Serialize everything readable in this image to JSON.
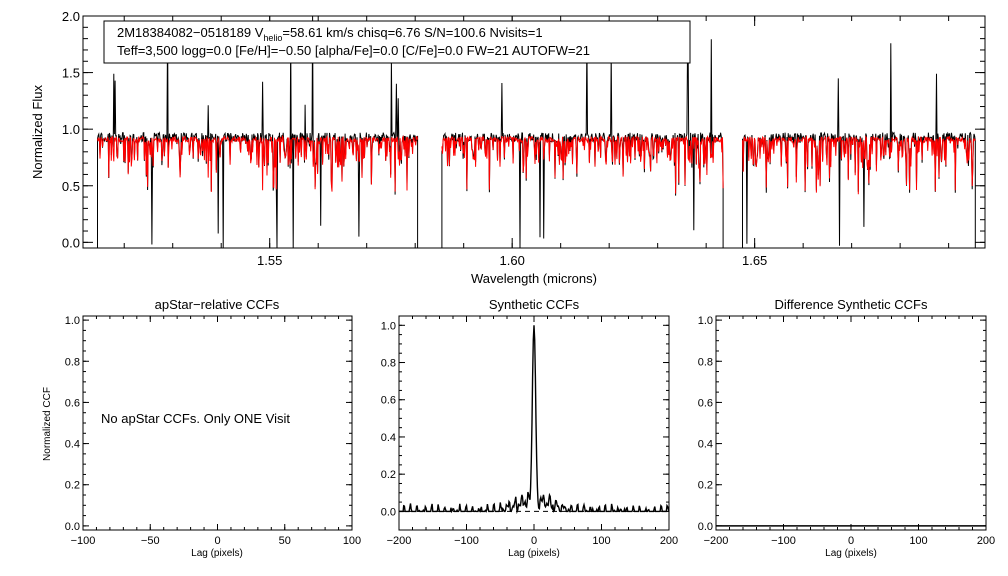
{
  "chart_data": [
    {
      "type": "line",
      "panel": "spectrum",
      "xlabel": "Wavelength (microns)",
      "ylabel": "Normalized Flux",
      "xlim": [
        1.5115,
        1.6975
      ],
      "ylim": [
        -0.05,
        2.0
      ],
      "xticks": [
        1.55,
        1.6,
        1.65
      ],
      "xtick_labels": [
        "1.55",
        "1.60",
        "1.65"
      ],
      "yticks": [
        0.0,
        0.5,
        1.0,
        1.5,
        2.0
      ],
      "ytick_labels": [
        "0.0",
        "0.5",
        "1.0",
        "1.5",
        "2.0"
      ],
      "chips": [
        [
          1.5145,
          1.5805
        ],
        [
          1.5855,
          1.6435
        ],
        [
          1.6475,
          1.6955
        ]
      ],
      "series": [
        {
          "name": "observed",
          "color": "#000000",
          "base": 0.93
        },
        {
          "name": "model",
          "color": "#ff0000",
          "base": 0.91
        }
      ],
      "info": {
        "id": "2M18384082−0518189",
        "vhelio_label": "V",
        "vhelio_sub": "helio",
        "vhelio_value": "=58.61 km/s",
        "chisq": "chisq=6.76",
        "sn": "S/N=100.6",
        "nvisits": "Nvisits=1",
        "teff": "Teff=3,500",
        "logg": "logg=0.0",
        "feh": "[Fe/H]=−0.50",
        "alpha": "[alpha/Fe]=0.0",
        "cfe": "[C/Fe]=0.0",
        "fw": "FW=21",
        "autofw": "AUTOFW=21"
      }
    },
    {
      "type": "line",
      "panel": "apstar",
      "title": "apStar−relative CCFs",
      "xlabel": "Lag (pixels)",
      "ylabel": "Normalized CCF",
      "xlim": [
        -100,
        100
      ],
      "ylim": [
        -0.02,
        1.02
      ],
      "xticks": [
        -100,
        -50,
        0,
        50,
        100
      ],
      "xtick_labels": [
        "−100",
        "−50",
        "0",
        "50",
        "100"
      ],
      "yticks": [
        0.0,
        0.2,
        0.4,
        0.6,
        0.8,
        1.0
      ],
      "ytick_labels": [
        "0.0",
        "0.2",
        "0.4",
        "0.6",
        "0.8",
        "1.0"
      ],
      "annotation": "No apStar CCFs.  Only ONE Visit"
    },
    {
      "type": "line",
      "panel": "synthetic",
      "title": "Synthetic CCFs",
      "xlabel": "Lag (pixels)",
      "xlim": [
        -200,
        200
      ],
      "ylim": [
        -0.1,
        1.05
      ],
      "xticks": [
        -200,
        -100,
        0,
        100,
        200
      ],
      "xtick_labels": [
        "−200",
        "−100",
        "0",
        "100",
        "200"
      ],
      "yticks": [
        0.0,
        0.2,
        0.4,
        0.6,
        0.8,
        1.0
      ],
      "ytick_labels": [
        "0.0",
        "0.2",
        "0.4",
        "0.6",
        "0.8",
        "1.0"
      ],
      "peak_lag": 0,
      "peak_value": 1.0,
      "zero_line": 0.0,
      "series": [
        {
          "name": "ccf",
          "color": "#000000"
        }
      ]
    },
    {
      "type": "line",
      "panel": "difference",
      "title": "Difference Synthetic CCFs",
      "xlim": [
        -200,
        200
      ],
      "xlabel": "Lag (pixels)",
      "ylim": [
        -0.02,
        1.02
      ],
      "xticks": [
        -200,
        -100,
        0,
        100,
        200
      ],
      "xtick_labels": [
        "−200",
        "−100",
        "0",
        "100",
        "200"
      ],
      "yticks": [
        0.0,
        0.2,
        0.4,
        0.6,
        0.8,
        1.0
      ],
      "ytick_labels": [
        "0.0",
        "0.2",
        "0.4",
        "0.6",
        "0.8",
        "1.0"
      ],
      "series": [
        {
          "name": "diff",
          "color": "#000000",
          "value": 0.0
        }
      ]
    }
  ]
}
